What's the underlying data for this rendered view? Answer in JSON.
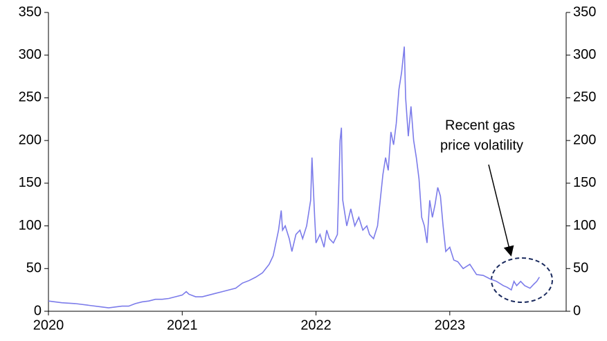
{
  "chart_data": {
    "type": "line",
    "annotation": [
      "Recent gas",
      "price volatility"
    ],
    "xlim": [
      2020,
      2023.87
    ],
    "xticks": [
      2020,
      2021,
      2022,
      2023
    ],
    "ylim": [
      0,
      350
    ],
    "yticks": [
      0,
      50,
      100,
      150,
      200,
      250,
      300,
      350
    ],
    "y2lim": [
      0,
      350
    ],
    "y2ticks": [
      0,
      50,
      100,
      150,
      200,
      250,
      300,
      350
    ],
    "grid": false,
    "x": [
      2020.0,
      2020.1,
      2020.2,
      2020.3,
      2020.4,
      2020.45,
      2020.5,
      2020.55,
      2020.6,
      2020.65,
      2020.7,
      2020.75,
      2020.8,
      2020.85,
      2020.9,
      2020.95,
      2021.0,
      2021.03,
      2021.05,
      2021.1,
      2021.15,
      2021.2,
      2021.25,
      2021.3,
      2021.35,
      2021.4,
      2021.45,
      2021.5,
      2021.55,
      2021.6,
      2021.65,
      2021.68,
      2021.7,
      2021.72,
      2021.74,
      2021.75,
      2021.77,
      2021.8,
      2021.82,
      2021.85,
      2021.88,
      2021.9,
      2021.93,
      2021.96,
      2021.97,
      2021.99,
      2022.0,
      2022.03,
      2022.06,
      2022.08,
      2022.1,
      2022.13,
      2022.16,
      2022.18,
      2022.19,
      2022.2,
      2022.23,
      2022.26,
      2022.29,
      2022.32,
      2022.35,
      2022.38,
      2022.4,
      2022.43,
      2022.46,
      2022.48,
      2022.5,
      2022.52,
      2022.54,
      2022.56,
      2022.58,
      2022.6,
      2022.62,
      2022.64,
      2022.66,
      2022.67,
      2022.69,
      2022.71,
      2022.73,
      2022.75,
      2022.77,
      2022.79,
      2022.81,
      2022.83,
      2022.85,
      2022.87,
      2022.89,
      2022.91,
      2022.93,
      2022.95,
      2022.97,
      2023.0,
      2023.03,
      2023.06,
      2023.1,
      2023.15,
      2023.2,
      2023.25,
      2023.3,
      2023.35,
      2023.4,
      2023.43,
      2023.46,
      2023.48,
      2023.5,
      2023.53,
      2023.56,
      2023.6,
      2023.63,
      2023.65,
      2023.67
    ],
    "series": [
      {
        "color": "#7b7bea",
        "values": [
          12,
          10,
          9,
          7,
          5,
          4,
          5,
          6,
          6,
          9,
          11,
          12,
          14,
          14,
          15,
          17,
          19,
          23,
          20,
          17,
          17,
          19,
          21,
          23,
          25,
          27,
          33,
          36,
          40,
          45,
          55,
          65,
          80,
          95,
          118,
          95,
          100,
          85,
          70,
          90,
          95,
          85,
          100,
          130,
          180,
          110,
          80,
          90,
          75,
          95,
          85,
          80,
          90,
          200,
          215,
          130,
          100,
          120,
          100,
          110,
          95,
          100,
          90,
          85,
          100,
          130,
          160,
          180,
          165,
          210,
          195,
          220,
          260,
          280,
          310,
          250,
          205,
          240,
          200,
          180,
          155,
          110,
          100,
          80,
          130,
          110,
          125,
          145,
          135,
          100,
          70,
          75,
          60,
          58,
          50,
          55,
          43,
          42,
          38,
          35,
          30,
          28,
          25,
          35,
          30,
          35,
          30,
          27,
          32,
          35,
          40
        ]
      }
    ]
  }
}
